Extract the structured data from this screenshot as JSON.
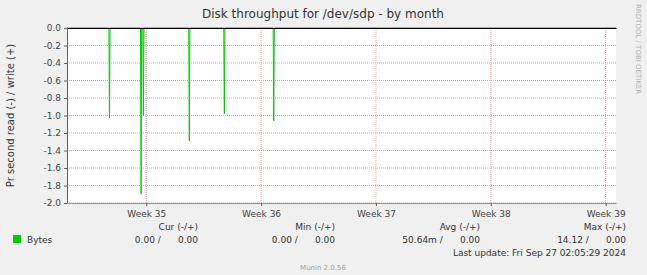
{
  "chart_data": {
    "type": "line",
    "title": "Disk throughput for /dev/sdp - by month",
    "ylabel": "Pr second read (-) / write (+)",
    "x": [
      34.31,
      34.675,
      34.68,
      34.685,
      34.95,
      34.955,
      34.96,
      34.97,
      34.975,
      34.98,
      35.37,
      35.375,
      35.38,
      35.675,
      35.68,
      35.685,
      36.105,
      36.11,
      36.115,
      39.09
    ],
    "series": [
      {
        "name": "Bytes",
        "color": "#00cc00",
        "values": [
          0,
          0,
          -1.03,
          0,
          0,
          -1.9,
          0,
          0,
          -1.0,
          0,
          0,
          -1.29,
          0,
          0,
          -0.98,
          0,
          0,
          -1.06,
          0,
          0
        ]
      }
    ],
    "xlim": [
      34.31,
      39.09
    ],
    "xticks": [
      {
        "value": 35,
        "label": "Week 35"
      },
      {
        "value": 36,
        "label": "Week 36"
      },
      {
        "value": 37,
        "label": "Week 37"
      },
      {
        "value": 38,
        "label": "Week 38"
      },
      {
        "value": 39,
        "label": "Week 39"
      }
    ],
    "ylim": [
      -2.0,
      0.0
    ],
    "yticks": [
      {
        "value": 0.0,
        "label": "0.0"
      },
      {
        "value": -0.2,
        "label": "-0.2"
      },
      {
        "value": -0.4,
        "label": "-0.4"
      },
      {
        "value": -0.6,
        "label": "-0.6"
      },
      {
        "value": -0.8,
        "label": "-0.8"
      },
      {
        "value": -1.0,
        "label": "-1.0"
      },
      {
        "value": -1.2,
        "label": "-1.2"
      },
      {
        "value": -1.4,
        "label": "-1.4"
      },
      {
        "value": -1.6,
        "label": "-1.6"
      },
      {
        "value": -1.8,
        "label": "-1.8"
      },
      {
        "value": -2.0,
        "label": "-2.0"
      }
    ],
    "grid": true,
    "legend_stats": {
      "headers": [
        "Cur (-/+)",
        "Min (-/+)",
        "Avg (-/+)",
        "Max (-/+)"
      ],
      "values": [
        "0.00 /      0.00",
        "0.00 /      0.00",
        "50.64m /      0.00",
        "14.12 /      0.00"
      ]
    },
    "last_update": "Last update: Fri Sep 27 02:05:29 2024",
    "footer": "Munin 2.0.56",
    "watermark": "RRDTOOL / TOBI OETIKER"
  }
}
